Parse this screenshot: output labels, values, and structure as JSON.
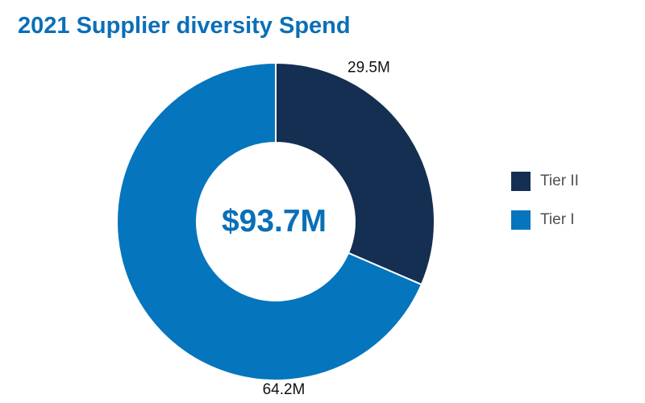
{
  "chart_data": {
    "type": "pie",
    "title": "2021 Supplier diversity Spend",
    "center_label": "$93.7M",
    "slices": [
      {
        "name": "Tier II",
        "value": 29.5,
        "label": "29.5M",
        "color": "#142f52"
      },
      {
        "name": "Tier I",
        "value": 64.2,
        "label": "64.2M",
        "color": "#0575bd"
      }
    ],
    "legend": {
      "placement": "right",
      "items": [
        {
          "label": "Tier II",
          "color": "#142f52"
        },
        {
          "label": "Tier I",
          "color": "#0575bd"
        }
      ]
    }
  },
  "colors": {
    "title": "#0a6fb7",
    "center_label": "#0a6fb7"
  }
}
